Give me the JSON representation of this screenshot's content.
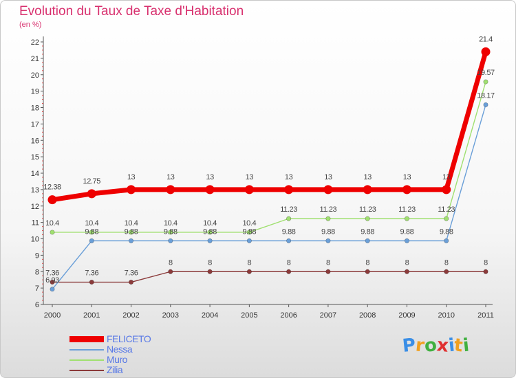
{
  "header": {
    "title": "Evolution du Taux de Taxe d'Habitation",
    "unit": "(en %)"
  },
  "logo": {
    "text": "Proxiti",
    "letters": [
      "P",
      "r",
      "o",
      "x",
      "i",
      "t",
      "i"
    ],
    "colors": [
      "#3a8ee6",
      "#f0a020",
      "#40b040",
      "#e03030",
      "#3a8ee6",
      "#f0a020",
      "#40b040"
    ]
  },
  "chart_data": {
    "type": "line",
    "title": "Evolution du Taux de Taxe d'Habitation",
    "ylabel": "(en %)",
    "xlabel": "",
    "x": [
      "2000",
      "2001",
      "2002",
      "2003",
      "2004",
      "2005",
      "2006",
      "2007",
      "2008",
      "2009",
      "2010",
      "2011"
    ],
    "ylim": [
      6,
      22
    ],
    "yticks": [
      "6",
      "7",
      "8",
      "9",
      "10",
      "11",
      "12",
      "13",
      "14",
      "15",
      "16",
      "17",
      "18",
      "19",
      "20",
      "21",
      "22"
    ],
    "grid": false,
    "legend_position": "bottom-left",
    "series": [
      {
        "name": "FELICETO",
        "color": "#ee0000",
        "values": [
          12.38,
          12.75,
          13,
          13,
          13,
          13,
          13,
          13,
          13,
          13,
          13,
          21.4
        ],
        "labels": [
          "12.38",
          "12.75",
          "13",
          "13",
          "13",
          "13",
          "13",
          "13",
          "13",
          "13",
          "13",
          "21.4"
        ]
      },
      {
        "name": "Nessa",
        "color": "#6a9fd8",
        "values": [
          6.93,
          9.88,
          9.88,
          9.88,
          9.88,
          9.88,
          9.88,
          9.88,
          9.88,
          9.88,
          9.88,
          18.17
        ],
        "labels": [
          "6.93",
          "9.88",
          "9.88",
          "9.88",
          "9.88",
          "9.88",
          "9.88",
          "9.88",
          "9.88",
          "9.88",
          "9.88",
          "18.17"
        ]
      },
      {
        "name": "Muro",
        "color": "#a0e070",
        "values": [
          10.4,
          10.4,
          10.4,
          10.4,
          10.4,
          10.4,
          11.23,
          11.23,
          11.23,
          11.23,
          11.23,
          19.57
        ],
        "labels": [
          "10.4",
          "10.4",
          "10.4",
          "10.4",
          "10.4",
          "10.4",
          "11.23",
          "11.23",
          "11.23",
          "11.23",
          "11.23",
          "19.57"
        ]
      },
      {
        "name": "Zilia",
        "color": "#8b3a3a",
        "values": [
          7.36,
          7.36,
          7.36,
          8,
          8,
          8,
          8,
          8,
          8,
          8,
          8,
          8
        ],
        "labels": [
          "7.36",
          "7.36",
          "7.36",
          "8",
          "8",
          "8",
          "8",
          "8",
          "8",
          "8",
          "8",
          "8"
        ]
      }
    ]
  }
}
